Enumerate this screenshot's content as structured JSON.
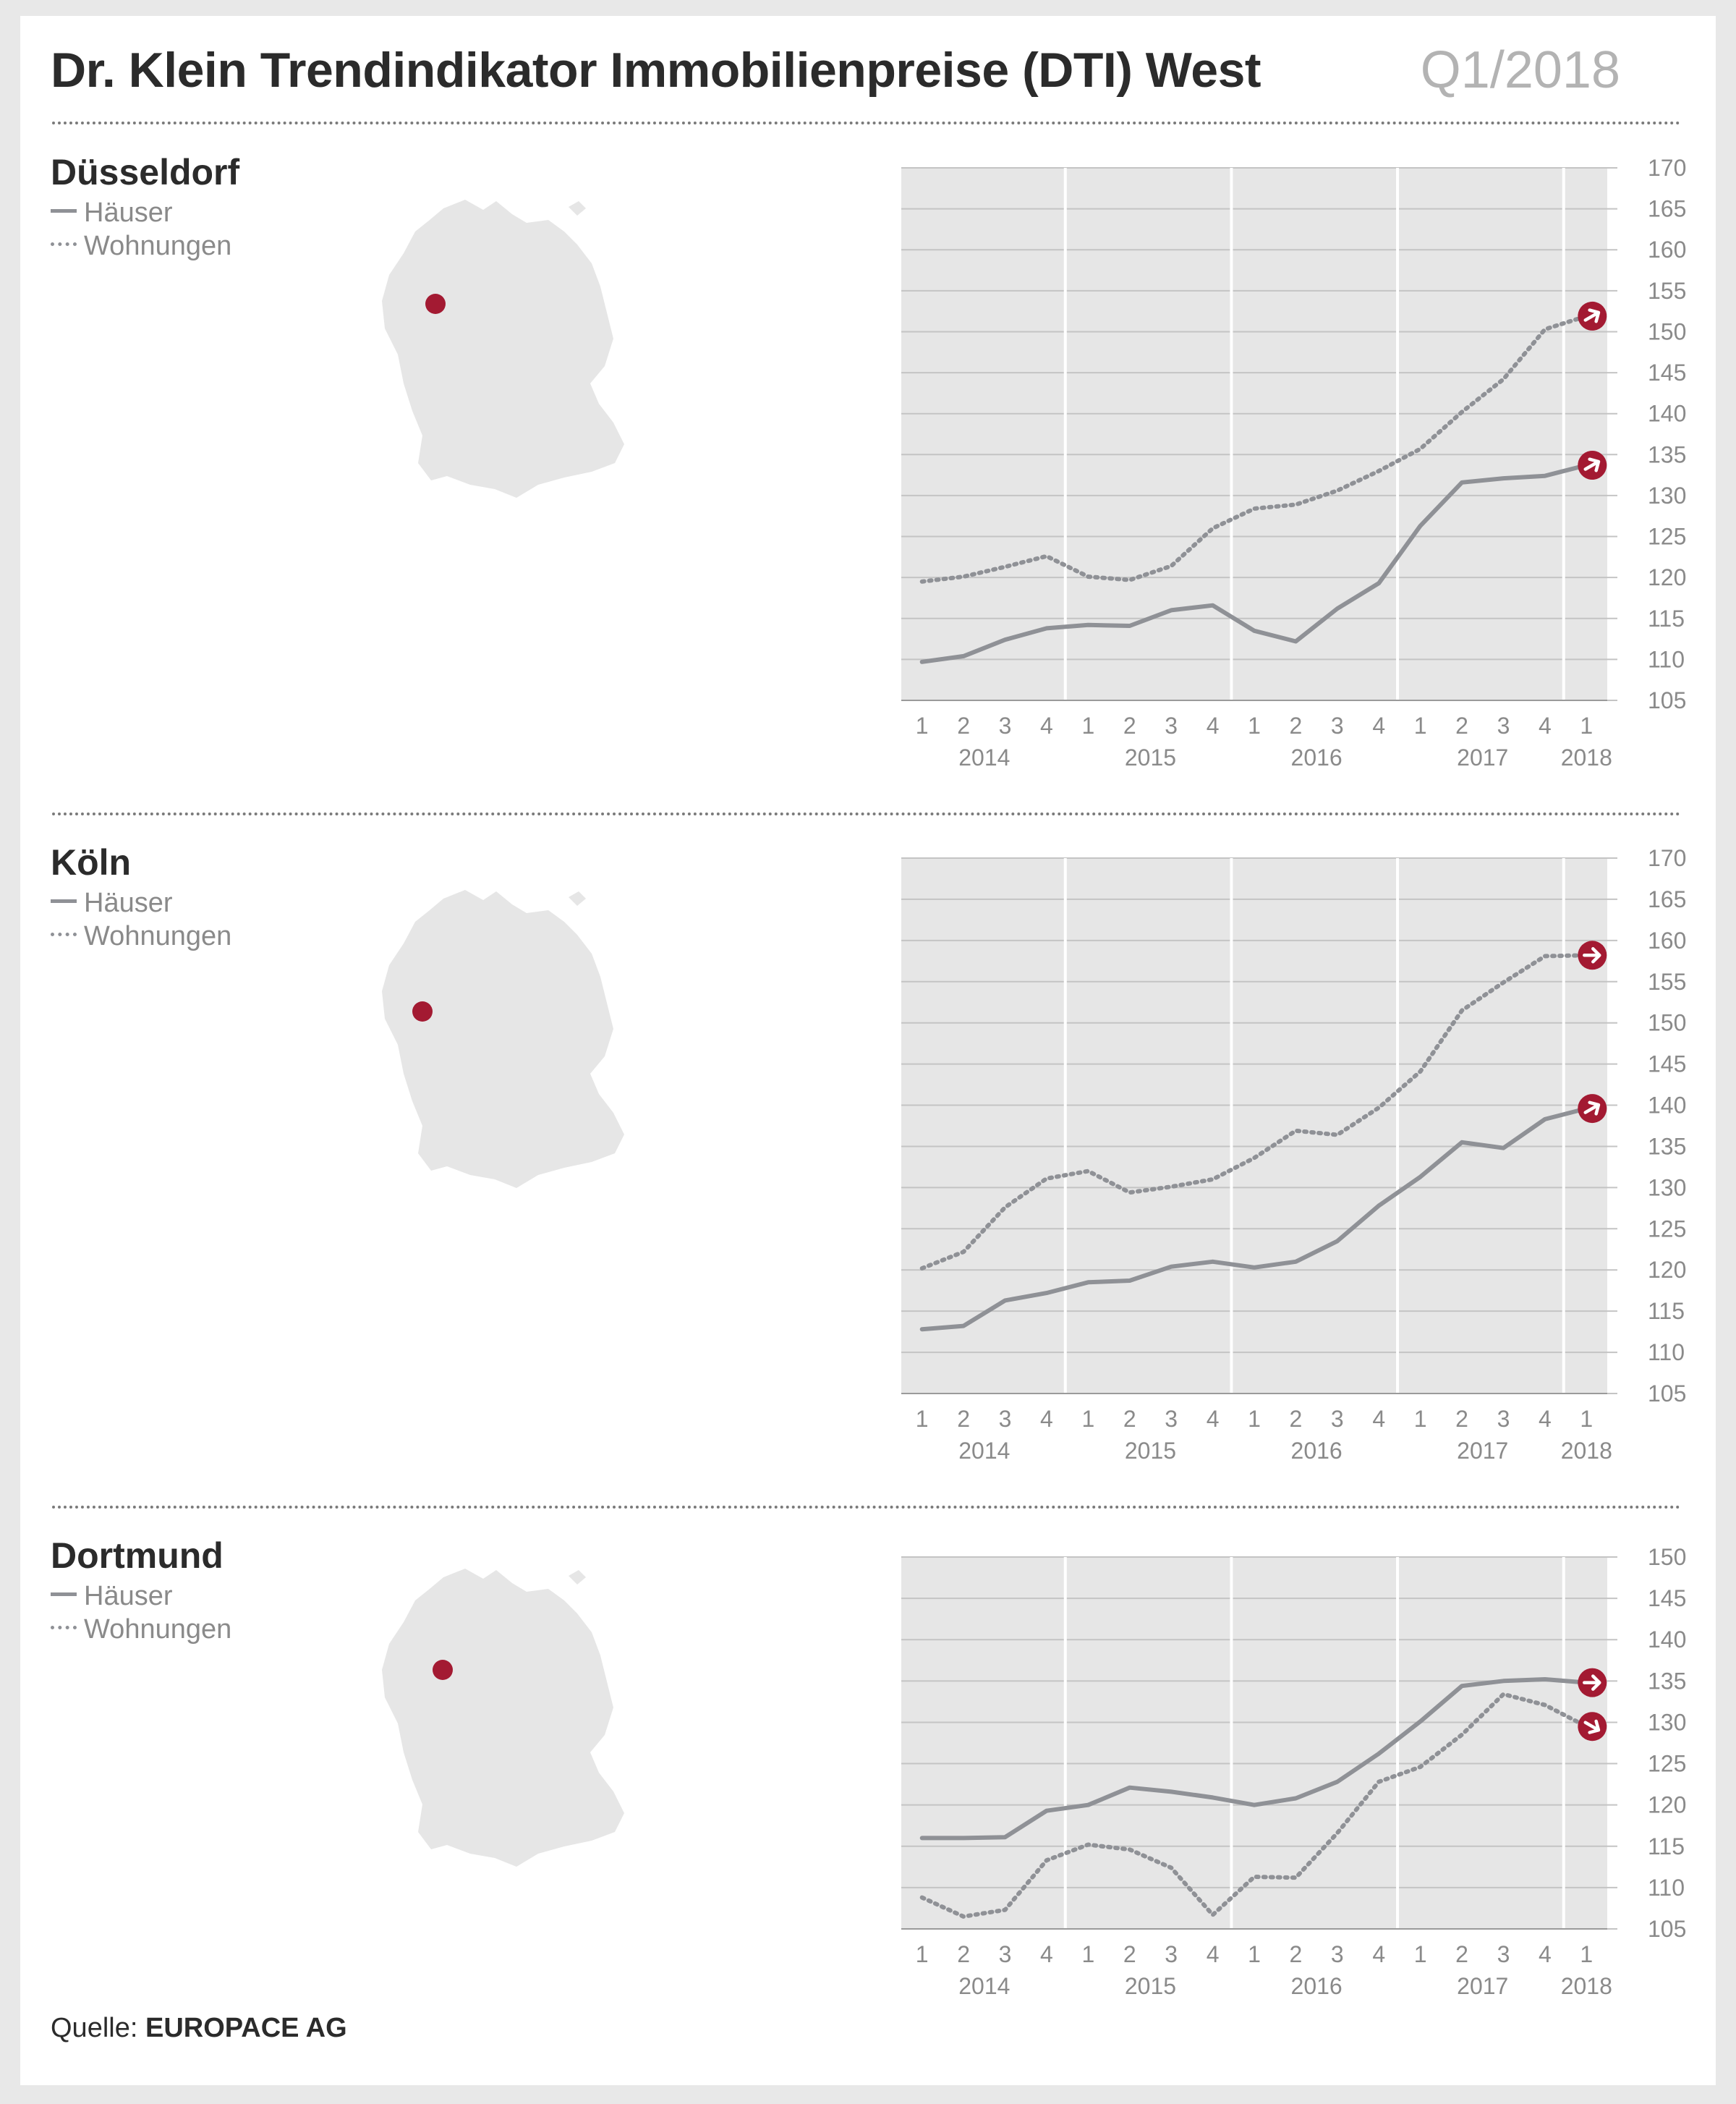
{
  "header": {
    "title": "Dr. Klein Trendindikator Immobilienpreise (DTI) West",
    "period": "Q1/2018"
  },
  "legend": {
    "houses": "Häuser",
    "apartments": "Wohnungen"
  },
  "source": {
    "prefix": "Quelle: ",
    "name": "EUROPACE AG"
  },
  "colors": {
    "line": "#8f9196",
    "accent": "#a31a32",
    "plot_bg": "#e6e6e6",
    "map": "#e6e6e6"
  },
  "icons": {
    "arrow_marker": "arrow-right-circle-icon",
    "location_marker": "location-dot-icon"
  },
  "chart_data": [
    {
      "type": "line",
      "title": "Düsseldorf",
      "quarter_labels": [
        "1",
        "2",
        "3",
        "4",
        "1",
        "2",
        "3",
        "4",
        "1",
        "2",
        "3",
        "4",
        "1",
        "2",
        "3",
        "4",
        "1"
      ],
      "years": [
        "2014",
        "2015",
        "2016",
        "2017",
        "2018"
      ],
      "ylim": [
        105,
        170
      ],
      "yticks": [
        105,
        110,
        115,
        120,
        125,
        130,
        135,
        140,
        145,
        150,
        155,
        160,
        165,
        170
      ],
      "grid": true,
      "series": [
        {
          "name": "Häuser",
          "style": "solid",
          "values": [
            109.7,
            110.4,
            112.4,
            113.8,
            114.2,
            114.1,
            116.0,
            116.6,
            113.5,
            112.2,
            116.2,
            119.3,
            126.3,
            131.6,
            132.1,
            132.4,
            133.7
          ]
        },
        {
          "name": "Wohnungen",
          "style": "dotted",
          "values": [
            119.5,
            120.1,
            121.3,
            122.6,
            120.1,
            119.7,
            121.4,
            126.0,
            128.4,
            128.9,
            130.6,
            133.0,
            135.7,
            140.2,
            144.2,
            150.3,
            151.9
          ]
        }
      ]
    },
    {
      "type": "line",
      "title": "Köln",
      "quarter_labels": [
        "1",
        "2",
        "3",
        "4",
        "1",
        "2",
        "3",
        "4",
        "1",
        "2",
        "3",
        "4",
        "1",
        "2",
        "3",
        "4",
        "1"
      ],
      "years": [
        "2014",
        "2015",
        "2016",
        "2017",
        "2018"
      ],
      "ylim": [
        105,
        170
      ],
      "yticks": [
        105,
        110,
        115,
        120,
        125,
        130,
        135,
        140,
        145,
        150,
        155,
        160,
        165,
        170
      ],
      "grid": true,
      "series": [
        {
          "name": "Häuser",
          "style": "solid",
          "values": [
            112.8,
            113.2,
            116.3,
            117.2,
            118.5,
            118.7,
            120.4,
            121.0,
            120.3,
            121.0,
            123.5,
            127.8,
            131.3,
            135.5,
            134.8,
            138.3,
            139.6
          ]
        },
        {
          "name": "Wohnungen",
          "style": "dotted",
          "values": [
            120.2,
            122.2,
            127.6,
            131.1,
            132.0,
            129.4,
            130.1,
            131.0,
            133.6,
            136.9,
            136.4,
            139.7,
            144.1,
            151.5,
            154.9,
            158.1,
            158.2
          ]
        }
      ]
    },
    {
      "type": "line",
      "title": "Dortmund",
      "quarter_labels": [
        "1",
        "2",
        "3",
        "4",
        "1",
        "2",
        "3",
        "4",
        "1",
        "2",
        "3",
        "4",
        "1",
        "2",
        "3",
        "4",
        "1"
      ],
      "years": [
        "2014",
        "2015",
        "2016",
        "2017",
        "2018"
      ],
      "ylim": [
        105,
        150
      ],
      "yticks": [
        105,
        110,
        115,
        120,
        125,
        130,
        135,
        140,
        145,
        150
      ],
      "grid": true,
      "series": [
        {
          "name": "Häuser",
          "style": "solid",
          "values": [
            116.0,
            116.0,
            116.1,
            119.3,
            120.0,
            122.1,
            121.6,
            120.9,
            120.0,
            120.8,
            122.8,
            126.2,
            130.1,
            134.4,
            135.0,
            135.2,
            134.8
          ]
        },
        {
          "name": "Wohnungen",
          "style": "dotted",
          "values": [
            108.8,
            106.5,
            107.3,
            113.3,
            115.2,
            114.6,
            112.4,
            106.7,
            111.3,
            111.2,
            116.6,
            122.8,
            124.6,
            128.5,
            133.4,
            132.1,
            129.5
          ]
        }
      ]
    }
  ]
}
